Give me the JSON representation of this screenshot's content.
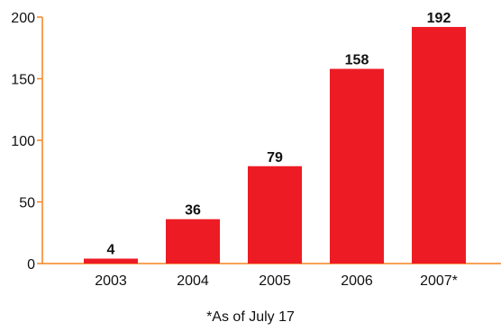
{
  "chart_data": {
    "type": "bar",
    "categories": [
      "2003",
      "2004",
      "2005",
      "2006",
      "2007*"
    ],
    "values": [
      4,
      36,
      79,
      158,
      192
    ],
    "data_labels": [
      "4",
      "36",
      "79",
      "158",
      "192"
    ],
    "ylim": [
      0,
      200
    ],
    "yticks": [
      "0",
      "50",
      "100",
      "150",
      "200"
    ],
    "grid": false,
    "bar_color": "#ed1c24",
    "axis_color": "#f58220"
  },
  "footnote": "*As of July 17"
}
